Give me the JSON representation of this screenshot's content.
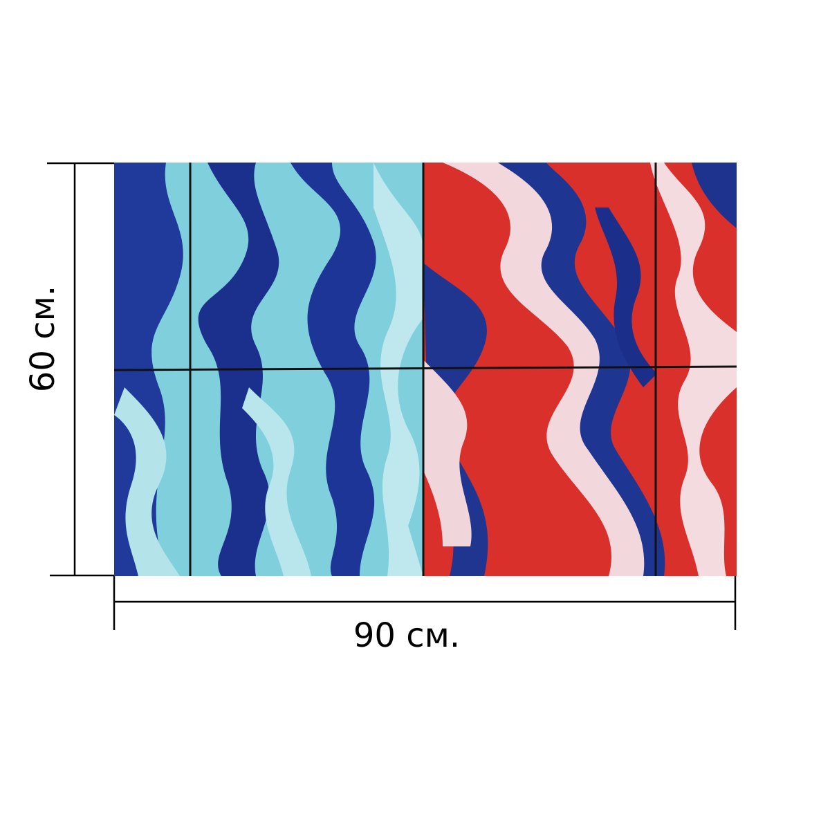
{
  "labels": {
    "height": "60 см.",
    "width": "90 см."
  }
}
